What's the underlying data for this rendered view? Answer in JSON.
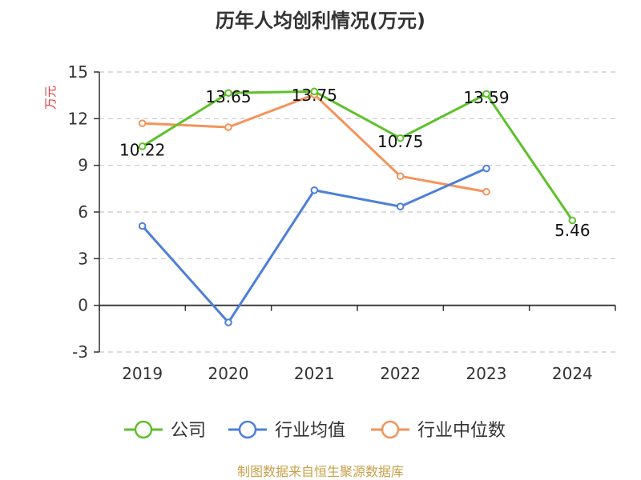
{
  "chart_data": {
    "type": "line",
    "title": "历年人均创利情况(万元)",
    "ylabel": "万元",
    "xlabel": "",
    "categories": [
      "2019",
      "2020",
      "2021",
      "2022",
      "2023",
      "2024"
    ],
    "ylim": [
      -3,
      15
    ],
    "yticks": [
      -3,
      0,
      3,
      6,
      9,
      12,
      15
    ],
    "grid": true,
    "legend_position": "bottom",
    "series": [
      {
        "name": "公司",
        "color": "#5ec12a",
        "values": [
          10.22,
          13.65,
          13.75,
          10.75,
          13.59,
          5.46
        ],
        "show_labels": true
      },
      {
        "name": "行业均值",
        "color": "#4e7fd8",
        "values": [
          5.1,
          -1.1,
          7.4,
          6.35,
          8.8,
          null
        ],
        "show_labels": false
      },
      {
        "name": "行业中位数",
        "color": "#f4935a",
        "values": [
          11.7,
          11.45,
          13.55,
          8.3,
          7.3,
          null
        ],
        "show_labels": false
      }
    ],
    "data_labels": [
      "10.22",
      "13.65",
      "13.75",
      "10.75",
      "13.59",
      "5.46"
    ]
  },
  "source": "制图数据来自恒生聚源数据库"
}
